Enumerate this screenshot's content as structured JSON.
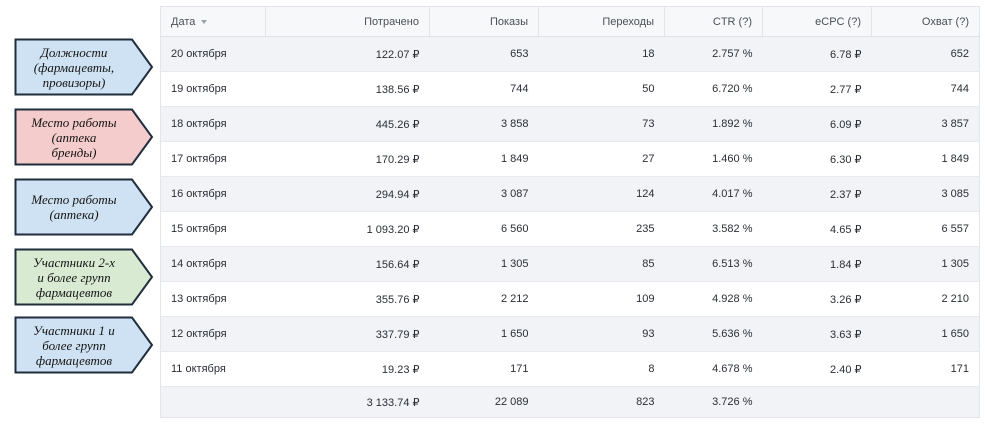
{
  "table": {
    "columns": [
      "Дата",
      "Потрачено",
      "Показы",
      "Переходы",
      "CTR (?)",
      "eCPC (?)",
      "Охват (?)"
    ],
    "rows": [
      {
        "date": "20 октября",
        "spent": "122.07 ₽",
        "impressions": "653",
        "clicks": "18",
        "ctr": "2.757 %",
        "ecpc": "6.78 ₽",
        "reach": "652"
      },
      {
        "date": "19 октября",
        "spent": "138.56 ₽",
        "impressions": "744",
        "clicks": "50",
        "ctr": "6.720 %",
        "ecpc": "2.77 ₽",
        "reach": "744"
      },
      {
        "date": "18 октября",
        "spent": "445.26 ₽",
        "impressions": "3 858",
        "clicks": "73",
        "ctr": "1.892 %",
        "ecpc": "6.09 ₽",
        "reach": "3 857"
      },
      {
        "date": "17 октября",
        "spent": "170.29 ₽",
        "impressions": "1 849",
        "clicks": "27",
        "ctr": "1.460 %",
        "ecpc": "6.30 ₽",
        "reach": "1 849"
      },
      {
        "date": "16 октября",
        "spent": "294.94 ₽",
        "impressions": "3 087",
        "clicks": "124",
        "ctr": "4.017 %",
        "ecpc": "2.37 ₽",
        "reach": "3 085"
      },
      {
        "date": "15 октября",
        "spent": "1 093.20 ₽",
        "impressions": "6 560",
        "clicks": "235",
        "ctr": "3.582 %",
        "ecpc": "4.65 ₽",
        "reach": "6 557"
      },
      {
        "date": "14 октября",
        "spent": "156.64 ₽",
        "impressions": "1 305",
        "clicks": "85",
        "ctr": "6.513 %",
        "ecpc": "1.84 ₽",
        "reach": "1 305"
      },
      {
        "date": "13 октября",
        "spent": "355.76 ₽",
        "impressions": "2 212",
        "clicks": "109",
        "ctr": "4.928 %",
        "ecpc": "3.26 ₽",
        "reach": "2 210"
      },
      {
        "date": "12 октября",
        "spent": "337.79 ₽",
        "impressions": "1 650",
        "clicks": "93",
        "ctr": "5.636 %",
        "ecpc": "3.63 ₽",
        "reach": "1 650"
      },
      {
        "date": "11 октября",
        "spent": "19.23 ₽",
        "impressions": "171",
        "clicks": "8",
        "ctr": "4.678 %",
        "ecpc": "2.40 ₽",
        "reach": "171"
      }
    ],
    "totals": {
      "date": "",
      "spent": "3 133.74 ₽",
      "impressions": "22 089",
      "clicks": "823",
      "ctr": "3.726 %",
      "ecpc": "",
      "reach": ""
    }
  },
  "callouts": [
    {
      "text": "Должности\n(фармацевты,\nпровизоры)",
      "color": "#cfe2f3"
    },
    {
      "text": "Место работы\n(аптека\nбренды)",
      "color": "#f4cccc"
    },
    {
      "text": "Место работы\n(аптека)",
      "color": "#cfe2f3"
    },
    {
      "text": "Участники 2-х\nи более групп\nфармацевтов",
      "color": "#d9ead3"
    },
    {
      "text": "Участники 1 и\nболее групп\nфармацевтов",
      "color": "#cfe2f3"
    }
  ]
}
